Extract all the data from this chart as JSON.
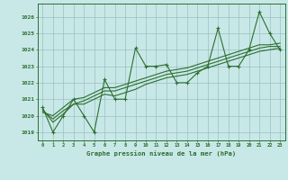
{
  "title": "Graphe pression niveau de la mer (hPa)",
  "xlim": [
    -0.5,
    23.5
  ],
  "ylim": [
    1018.5,
    1026.8
  ],
  "yticks": [
    1019,
    1020,
    1021,
    1022,
    1023,
    1024,
    1025,
    1026
  ],
  "xticks": [
    0,
    1,
    2,
    3,
    4,
    5,
    6,
    7,
    8,
    9,
    10,
    11,
    12,
    13,
    14,
    15,
    16,
    17,
    18,
    19,
    20,
    21,
    22,
    23
  ],
  "background_color": "#c8e8e8",
  "grid_color": "#9bbfbf",
  "line_color": "#2d6e2d",
  "main_series": [
    1020.5,
    1019.0,
    1020.0,
    1021.0,
    1020.0,
    1019.0,
    1022.2,
    1021.0,
    1021.0,
    1024.1,
    1023.0,
    1023.0,
    1023.1,
    1022.0,
    1022.0,
    1022.6,
    1023.0,
    1025.3,
    1023.0,
    1023.0,
    1024.0,
    1026.3,
    1025.0,
    1024.0
  ],
  "smooth1": [
    1020.4,
    1019.6,
    1020.1,
    1020.7,
    1020.7,
    1021.0,
    1021.3,
    1021.2,
    1021.4,
    1021.6,
    1021.9,
    1022.1,
    1022.3,
    1022.4,
    1022.5,
    1022.7,
    1022.9,
    1023.1,
    1023.3,
    1023.5,
    1023.7,
    1023.9,
    1024.0,
    1024.1
  ],
  "smooth2": [
    1020.3,
    1019.8,
    1020.3,
    1020.7,
    1020.9,
    1021.2,
    1021.5,
    1021.5,
    1021.7,
    1021.9,
    1022.1,
    1022.3,
    1022.5,
    1022.6,
    1022.7,
    1022.9,
    1023.1,
    1023.3,
    1023.5,
    1023.7,
    1023.9,
    1024.1,
    1024.2,
    1024.2
  ],
  "smooth3": [
    1020.2,
    1020.0,
    1020.5,
    1021.0,
    1021.1,
    1021.4,
    1021.7,
    1021.7,
    1021.9,
    1022.1,
    1022.3,
    1022.5,
    1022.7,
    1022.8,
    1022.9,
    1023.1,
    1023.3,
    1023.5,
    1023.7,
    1023.9,
    1024.1,
    1024.3,
    1024.3,
    1024.4
  ]
}
